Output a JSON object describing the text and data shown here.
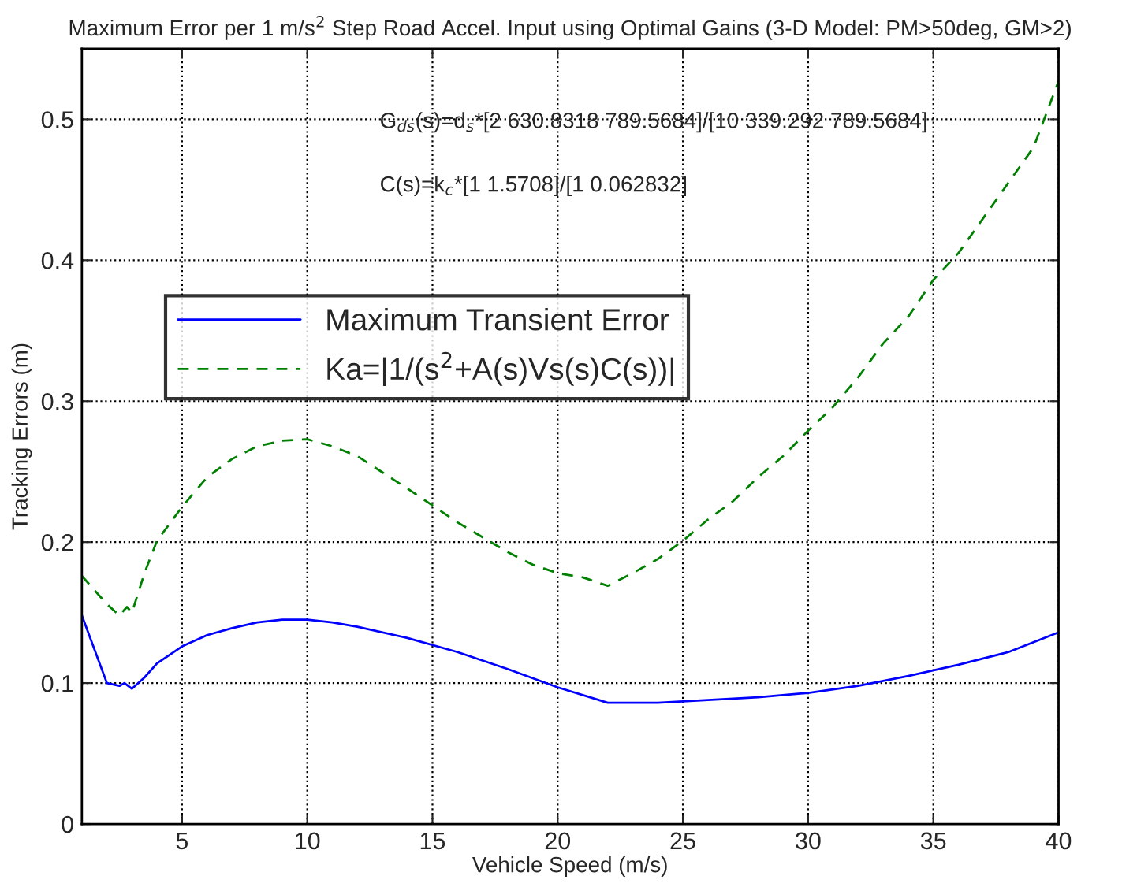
{
  "chart_data": {
    "type": "line",
    "title": "Maximum Error per 1 m/s$^{2}$ Step Road Accel. Input using Optimal Gains (3-D Model: PM>50deg, GM>2)",
    "xlabel": "Vehicle Speed (m/s)",
    "ylabel": "Tracking Errors (m)",
    "annotations": [
      "G$_{ds}$(s)=d$_{s}$*[2 630.8318 789.5684]/[10 339.292 789.5684]",
      "C(s)=k$_{c}$*[1 1.5708]/[1 0.062832]"
    ],
    "x": [
      1,
      2,
      2.5,
      2.7,
      3,
      3.5,
      4,
      5,
      6,
      7,
      8,
      9,
      10,
      11,
      12,
      14,
      16,
      18,
      20,
      22,
      24,
      26,
      28,
      30,
      32,
      34,
      36,
      38,
      40
    ],
    "series": [
      {
        "name": "Maximum Transient Error",
        "color": "#0000ff",
        "line_style": "solid",
        "values": [
          0.148,
          0.1,
          0.098,
          0.1,
          0.096,
          0.104,
          0.114,
          0.126,
          0.134,
          0.139,
          0.143,
          0.145,
          0.145,
          0.143,
          0.14,
          0.132,
          0.122,
          0.11,
          0.097,
          0.086,
          0.086,
          0.088,
          0.09,
          0.093,
          0.098,
          0.105,
          0.113,
          0.122,
          0.136
        ]
      },
      {
        "name": "Ka=|1/(s$^{2}$+A(s)Vs(s)C(s))|",
        "color": "#008000",
        "line_style": "dashed",
        "x": [
          1,
          2,
          2.5,
          2.8,
          3,
          3.5,
          4,
          5,
          6,
          7,
          8,
          9,
          10,
          11,
          12,
          14,
          16,
          18,
          19,
          20,
          21,
          22,
          23,
          24,
          25,
          26,
          27,
          28,
          29,
          30,
          31,
          32,
          33,
          34,
          35,
          36,
          37,
          38,
          39,
          40
        ],
        "values": [
          0.176,
          0.156,
          0.148,
          0.154,
          0.15,
          0.178,
          0.201,
          0.225,
          0.246,
          0.259,
          0.268,
          0.272,
          0.273,
          0.268,
          0.261,
          0.238,
          0.214,
          0.193,
          0.184,
          0.178,
          0.175,
          0.169,
          0.178,
          0.188,
          0.201,
          0.216,
          0.229,
          0.246,
          0.261,
          0.279,
          0.296,
          0.317,
          0.341,
          0.36,
          0.386,
          0.405,
          0.43,
          0.455,
          0.48,
          0.527
        ]
      }
    ],
    "xlim": [
      1,
      40
    ],
    "xticks": [
      5,
      10,
      15,
      20,
      25,
      30,
      35,
      40
    ],
    "ylim": [
      0,
      0.55
    ],
    "yticks": [
      0,
      0.1,
      0.2,
      0.3,
      0.4,
      0.5
    ],
    "grid": true,
    "legend": "left",
    "marker": "none"
  }
}
